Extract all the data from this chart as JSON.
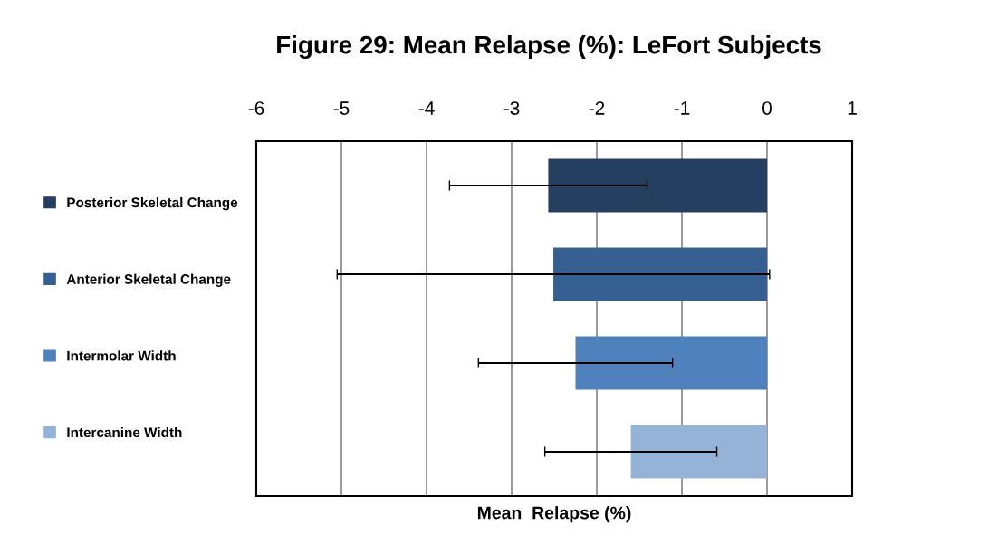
{
  "chart_data": {
    "type": "bar",
    "orientation": "horizontal",
    "title": "Figure 29: Mean Relapse (%): LeFort Subjects",
    "xlabel": "Mean  Relapse (%)",
    "categories": [
      null,
      null,
      null,
      null
    ],
    "series": [
      {
        "name": "Posterior Skeletal Change",
        "color": "#243f60",
        "values": [
          -2.57,
          null,
          null,
          null
        ],
        "errors": [
          1.16,
          null,
          null,
          null
        ]
      },
      {
        "name": "Anterior Skeletal Change",
        "color": "#366092",
        "values": [
          null,
          -2.51,
          null,
          null
        ],
        "errors": [
          null,
          2.54,
          null,
          null
        ]
      },
      {
        "name": "Intermolar Width",
        "color": "#4f81bd",
        "values": [
          null,
          null,
          -2.25,
          null
        ],
        "errors": [
          null,
          null,
          1.14,
          null
        ]
      },
      {
        "name": "Intercanine Width",
        "color": "#95b3d7",
        "values": [
          null,
          null,
          null,
          -1.6
        ],
        "errors": [
          null,
          null,
          null,
          1.01
        ]
      }
    ],
    "xlim": [
      -6,
      1
    ],
    "xticks": [
      -6,
      -5,
      -4,
      -3,
      -2,
      -1,
      0,
      1
    ],
    "grid": "x",
    "legend": "left"
  }
}
